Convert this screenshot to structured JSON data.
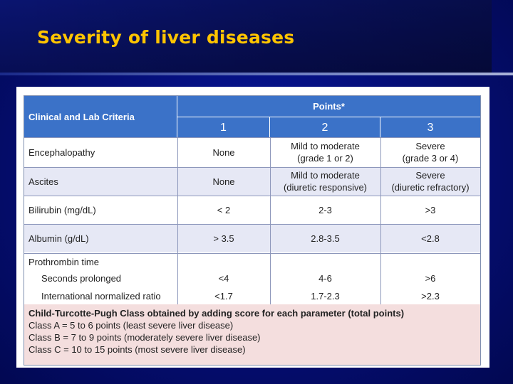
{
  "slide": {
    "title": "Severity of liver diseases"
  },
  "table": {
    "header": {
      "criteria": "Clinical and Lab Criteria",
      "points": "Points*",
      "p1": "1",
      "p2": "2",
      "p3": "3"
    },
    "rows": [
      {
        "label": "Encephalopathy",
        "c1": "None",
        "c2a": "Mild to moderate",
        "c2b": "(grade 1 or 2)",
        "c3a": "Severe",
        "c3b": "(grade 3 or 4)"
      },
      {
        "label": "Ascites",
        "c1": "None",
        "c2a": "Mild to moderate",
        "c2b": "(diuretic responsive)",
        "c3a": "Severe",
        "c3b": "(diuretic refractory)"
      },
      {
        "label": "Bilirubin (mg/dL)",
        "c1": "< 2",
        "c2": "2-3",
        "c3": ">3"
      },
      {
        "label": "Albumin (g/dL)",
        "c1": "> 3.5",
        "c2": "2.8-3.5",
        "c3": "<2.8"
      }
    ],
    "prothrombin": {
      "label": "Prothrombin time",
      "seconds_label": "Seconds prolonged",
      "seconds": {
        "c1": "<4",
        "c2": "4-6",
        "c3": ">6"
      },
      "inr_label": "International normalized ratio",
      "inr": {
        "c1": "<1.7",
        "c2": "1.7-2.3",
        "c3": ">2.3"
      }
    }
  },
  "footer": {
    "heading": "Child-Turcotte-Pugh Class obtained by adding score for each parameter (total points)",
    "lines": [
      "Class A = 5 to 6 points (least severe liver disease)",
      "Class B = 7 to 9 points (moderately severe liver disease)",
      "Class C = 10 to 15 points (most severe liver disease)"
    ]
  },
  "colors": {
    "title": "#ffc400",
    "header": "#3b72c8",
    "row_alt": "#e6e8f5",
    "footer_bg": "#f4dede"
  }
}
